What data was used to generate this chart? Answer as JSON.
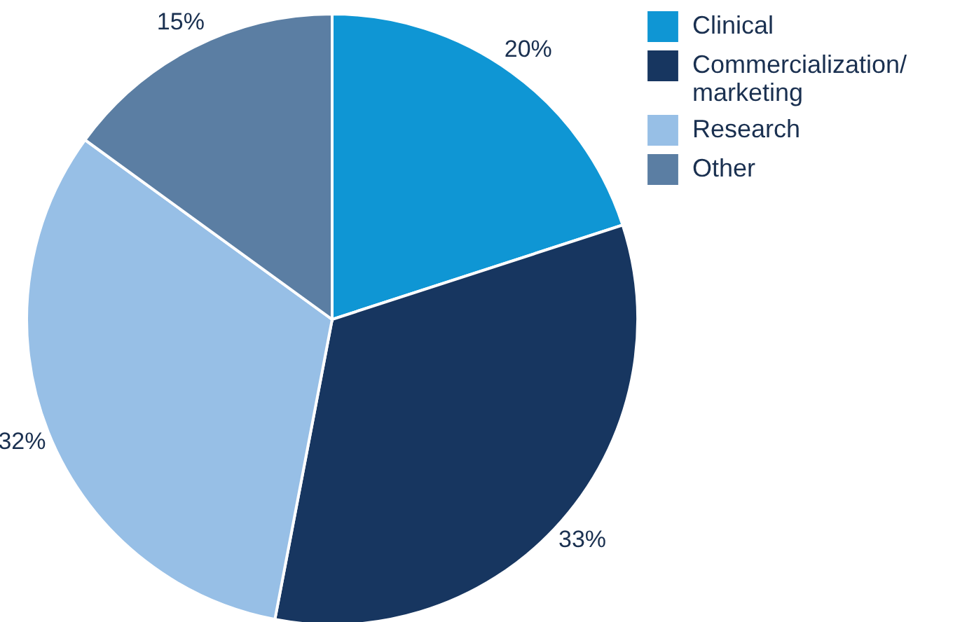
{
  "chart_data": {
    "type": "pie",
    "categories": [
      "Clinical",
      "Commercialization/marketing",
      "Research",
      "Other"
    ],
    "values": [
      20,
      33,
      32,
      15
    ],
    "colors": [
      "#0f96d4",
      "#173660",
      "#97bfe6",
      "#5b7ea3"
    ],
    "value_labels": [
      "20%",
      "33%",
      "32%",
      "15%"
    ],
    "legend": "top right"
  }
}
